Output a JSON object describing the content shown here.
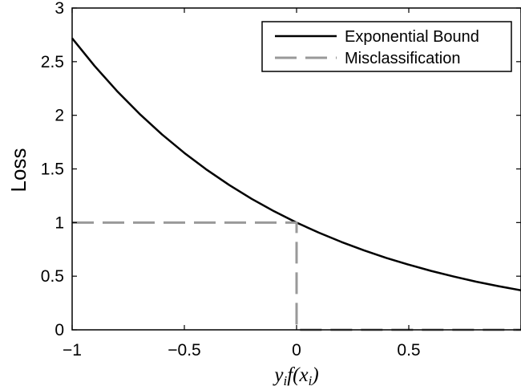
{
  "chart_data": {
    "type": "line",
    "title": "",
    "xlabel": "yᵢf(xᵢ)",
    "ylabel": "Loss",
    "xlim": [
      -1,
      1
    ],
    "ylim": [
      0,
      3
    ],
    "xticks": [
      -1,
      -0.5,
      0,
      0.5,
      1
    ],
    "xtick_labels": [
      "−1",
      "−0.5",
      "0",
      "0.5",
      ""
    ],
    "yticks": [
      0,
      0.5,
      1,
      1.5,
      2,
      2.5,
      3
    ],
    "ytick_labels": [
      "0",
      "0.5",
      "1",
      "1.5",
      "2",
      "2.5",
      "3"
    ],
    "grid": false,
    "legend_position": "top-right",
    "series": [
      {
        "name": "Exponential Bound",
        "style": "solid",
        "color": "#000000",
        "x": [
          -1,
          -0.9,
          -0.8,
          -0.7,
          -0.6,
          -0.5,
          -0.4,
          -0.3,
          -0.2,
          -0.1,
          0,
          0.1,
          0.2,
          0.3,
          0.4,
          0.5,
          0.6,
          0.7,
          0.8,
          0.9,
          1
        ],
        "y": [
          2.718,
          2.46,
          2.226,
          2.014,
          1.822,
          1.649,
          1.492,
          1.35,
          1.221,
          1.105,
          1.0,
          0.905,
          0.819,
          0.741,
          0.67,
          0.607,
          0.549,
          0.497,
          0.449,
          0.407,
          0.368
        ]
      },
      {
        "name": "Misclassification",
        "style": "dashed",
        "color": "#999999",
        "x": [
          -1,
          0,
          0,
          1
        ],
        "y": [
          1,
          1,
          0,
          0
        ]
      }
    ]
  }
}
